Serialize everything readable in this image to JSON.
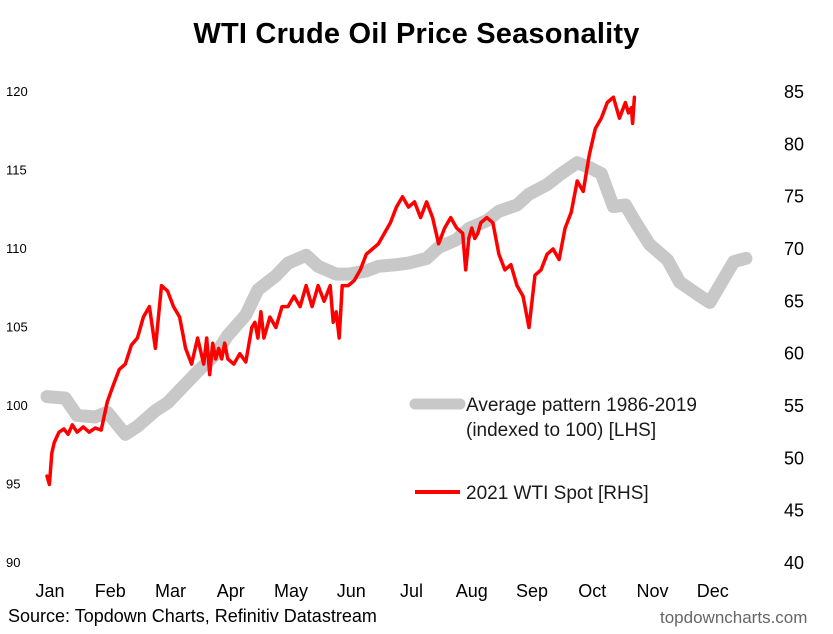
{
  "title": "WTI Crude Oil Price Seasonality",
  "source": "Source: Topdown Charts, Refinitiv Datastream",
  "watermark": "topdowncharts.com",
  "colors": {
    "average": "#c8c8c8",
    "spot": "#ff0000"
  },
  "chart_data": {
    "type": "line",
    "title": "WTI Crude Oil Price Seasonality",
    "categories": [
      "Jan",
      "Feb",
      "Mar",
      "Apr",
      "May",
      "Jun",
      "Jul",
      "Aug",
      "Sep",
      "Oct",
      "Nov",
      "Dec"
    ],
    "x_range": [
      0,
      12
    ],
    "y_left": {
      "ticks": [
        90,
        95,
        100,
        105,
        110,
        115,
        120
      ],
      "range": [
        90,
        120
      ]
    },
    "y_right": {
      "ticks": [
        40,
        45,
        50,
        55,
        60,
        65,
        70,
        75,
        80,
        85
      ],
      "range": [
        40,
        85
      ]
    },
    "legend": [
      {
        "label_line1": "Average pattern 1986-2019",
        "label_line2": "(indexed to 100) [LHS]",
        "color": "#c8c8c8"
      },
      {
        "label_line1": "2021 WTI Spot [RHS]",
        "color": "#ff0000"
      }
    ],
    "series": [
      {
        "name": "Average pattern 1986-2019 (indexed to 100) [LHS]",
        "axis": "left",
        "x": [
          0,
          0.3,
          0.5,
          0.8,
          1.0,
          1.3,
          1.5,
          1.8,
          2.0,
          2.3,
          2.5,
          2.8,
          3.0,
          3.3,
          3.5,
          3.8,
          4.0,
          4.3,
          4.5,
          4.8,
          5.0,
          5.3,
          5.5,
          5.8,
          6.0,
          6.3,
          6.5,
          6.8,
          7.0,
          7.3,
          7.5,
          7.8,
          8.0,
          8.3,
          8.5,
          8.8,
          9.0,
          9.2,
          9.4,
          9.6,
          9.8,
          10.0,
          10.3,
          10.5,
          10.8,
          11.0,
          11.2,
          11.4,
          11.6
        ],
        "values": [
          100.6,
          100.5,
          99.4,
          99.3,
          99.6,
          98.2,
          98.7,
          99.7,
          100.2,
          101.4,
          102.2,
          103.3,
          104.5,
          105.8,
          107.4,
          108.3,
          109.1,
          109.6,
          108.9,
          108.4,
          108.4,
          108.6,
          108.9,
          109.0,
          109.1,
          109.4,
          110.1,
          110.6,
          111.3,
          111.8,
          112.4,
          112.8,
          113.5,
          114.1,
          114.7,
          115.5,
          115.2,
          114.8,
          112.7,
          112.8,
          111.5,
          110.3,
          109.3,
          107.9,
          107.1,
          106.6,
          107.9,
          109.2,
          109.4
        ]
      },
      {
        "name": "2021 WTI Spot [RHS]",
        "axis": "right",
        "x": [
          0,
          0.04,
          0.08,
          0.12,
          0.16,
          0.2,
          0.28,
          0.35,
          0.42,
          0.5,
          0.6,
          0.7,
          0.8,
          0.9,
          1.0,
          1.1,
          1.2,
          1.3,
          1.4,
          1.5,
          1.6,
          1.7,
          1.8,
          1.9,
          2.0,
          2.1,
          2.2,
          2.3,
          2.4,
          2.5,
          2.6,
          2.65,
          2.7,
          2.75,
          2.8,
          2.85,
          2.9,
          2.95,
          3.0,
          3.1,
          3.2,
          3.3,
          3.4,
          3.45,
          3.5,
          3.55,
          3.6,
          3.7,
          3.8,
          3.9,
          4.0,
          4.1,
          4.2,
          4.3,
          4.4,
          4.5,
          4.6,
          4.7,
          4.75,
          4.8,
          4.85,
          4.9,
          5.0,
          5.1,
          5.2,
          5.3,
          5.4,
          5.5,
          5.6,
          5.7,
          5.8,
          5.9,
          6.0,
          6.1,
          6.2,
          6.3,
          6.4,
          6.5,
          6.6,
          6.7,
          6.8,
          6.9,
          6.95,
          7.0,
          7.05,
          7.1,
          7.15,
          7.2,
          7.3,
          7.4,
          7.5,
          7.6,
          7.7,
          7.8,
          7.9,
          8.0,
          8.1,
          8.2,
          8.3,
          8.4,
          8.5,
          8.6,
          8.7,
          8.8,
          8.9,
          9.0,
          9.1,
          9.2,
          9.3,
          9.4,
          9.5,
          9.6,
          9.65,
          9.7,
          9.72,
          9.75
        ],
        "values": [
          48.3,
          47.5,
          50.5,
          51.5,
          52.0,
          52.5,
          52.8,
          52.3,
          53.2,
          52.5,
          53.0,
          52.5,
          52.9,
          52.7,
          55.4,
          57.0,
          58.5,
          59.0,
          60.8,
          61.5,
          63.5,
          64.5,
          60.5,
          66.5,
          66.0,
          64.5,
          63.5,
          60.5,
          59.0,
          61.5,
          59.0,
          61.5,
          58.0,
          61.0,
          59.5,
          60.5,
          59.5,
          61.0,
          59.5,
          59.0,
          60.0,
          59.2,
          62.5,
          63.0,
          61.5,
          64.0,
          61.5,
          63.5,
          62.5,
          64.5,
          64.5,
          65.5,
          64.5,
          66.5,
          64.5,
          66.5,
          65.0,
          66.5,
          63.0,
          64.0,
          61.5,
          66.5,
          66.5,
          67.0,
          68.0,
          69.5,
          70.0,
          70.5,
          71.5,
          72.5,
          74.0,
          75.0,
          74.0,
          74.5,
          73.0,
          74.5,
          73.0,
          70.5,
          72.0,
          73.0,
          72.0,
          71.5,
          68.0,
          71.0,
          72.0,
          71.0,
          71.5,
          72.5,
          73.0,
          72.5,
          69.5,
          68.0,
          68.5,
          66.5,
          65.5,
          62.5,
          67.5,
          68.0,
          69.5,
          70.0,
          69.0,
          72.0,
          73.5,
          76.5,
          75.5,
          79.0,
          81.5,
          82.5,
          84.0,
          84.5,
          82.5,
          84.0,
          83.0,
          83.5,
          82.0,
          84.5
        ]
      }
    ]
  }
}
